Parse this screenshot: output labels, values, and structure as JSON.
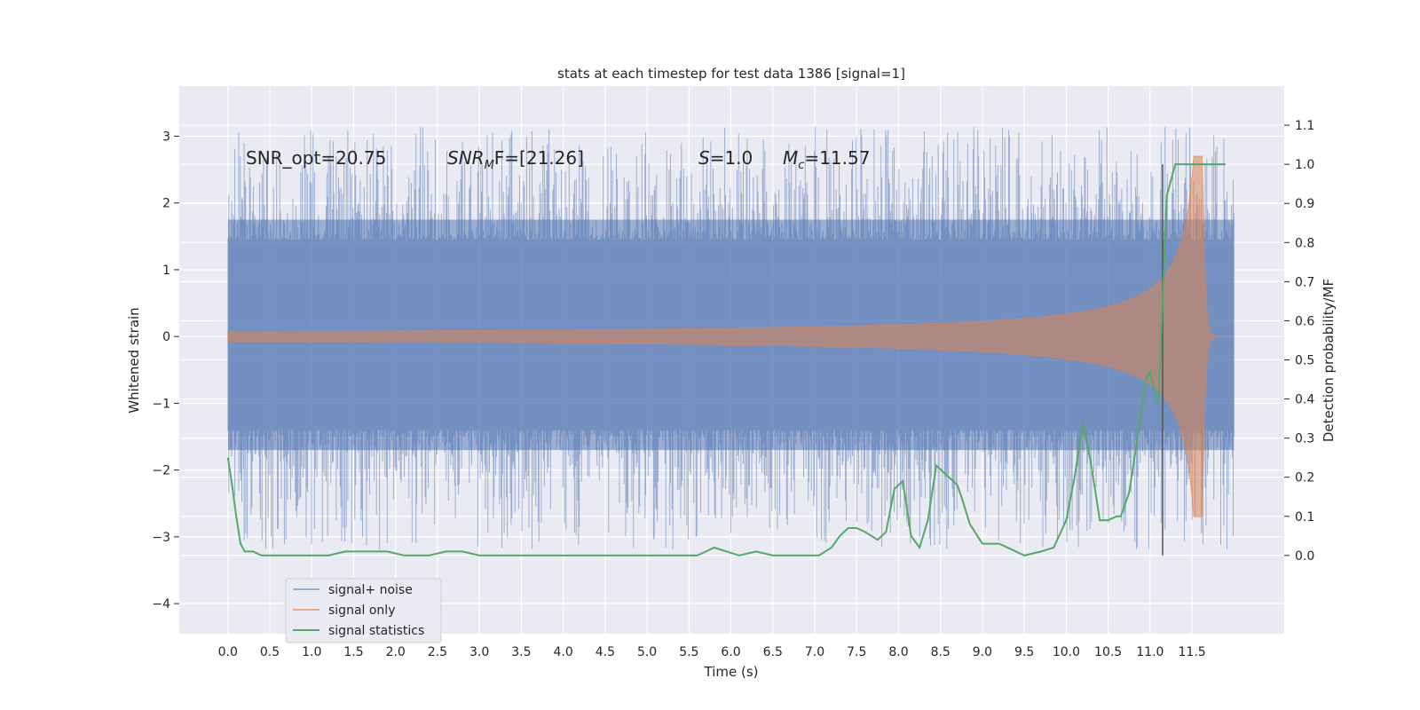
{
  "chart_data": {
    "type": "line",
    "title": "stats at each timestep for test data 1386 [signal=1]",
    "xlabel": "Time (s)",
    "ylabel": "Whitened strain",
    "ylabel_right": "Detection probability/MF",
    "xlim": [
      -0.58,
      12.6
    ],
    "ylim": [
      -4.45,
      3.75
    ],
    "ylim_right": [
      -0.2,
      1.2
    ],
    "x_ticks": [
      "0.0",
      "0.5",
      "1.0",
      "1.5",
      "2.0",
      "2.5",
      "3.0",
      "3.5",
      "4.0",
      "4.5",
      "5.0",
      "5.5",
      "6.0",
      "6.5",
      "7.0",
      "7.5",
      "8.0",
      "8.5",
      "9.0",
      "9.5",
      "10.0",
      "10.5",
      "11.0",
      "11.5"
    ],
    "y_ticks_left": [
      "3",
      "2",
      "1",
      "0",
      "−1",
      "−2",
      "−3",
      "−4"
    ],
    "y_ticks_right": [
      "1.1",
      "1.0",
      "0.9",
      "0.8",
      "0.7",
      "0.6",
      "0.5",
      "0.4",
      "0.3",
      "0.2",
      "0.1",
      "0.0"
    ],
    "grid": true,
    "legend_position": "lower-left",
    "legend": [
      "signal+ noise",
      "signal only",
      "signal statistics"
    ],
    "colors": {
      "noise": "#4c72b0",
      "signal": "#dd8452",
      "stats": "#55a868",
      "vline": "#555555",
      "background": "#eaeaf2"
    },
    "annotations": {
      "snr_opt": "SNR_opt=20.75",
      "snr_mf_main": "SNR",
      "snr_mf_sub": "M",
      "snr_mf_value": "F=[21.26]",
      "s_main": "S",
      "s_value": "=1.0",
      "mc_main": "M",
      "mc_sub": "c",
      "mc_value": "=11.57"
    },
    "series": [
      {
        "name": "signal+ noise",
        "axis": "left",
        "description_values": {
          "t_start": 0.0,
          "t_end": 12.0,
          "typical_range": [
            -1.7,
            1.75
          ],
          "max": 3.35,
          "min": -3.45
        }
      },
      {
        "name": "signal only",
        "axis": "left",
        "description_values": {
          "t_start": 0.0,
          "t_end": 12.0,
          "peak_time": 11.63,
          "peak_amplitude": 2.7
        }
      },
      {
        "name": "signal statistics",
        "axis": "right",
        "x": [
          0.0,
          0.05,
          0.1,
          0.15,
          0.2,
          0.3,
          0.4,
          0.5,
          0.6,
          0.8,
          1.0,
          1.2,
          1.4,
          1.55,
          1.7,
          1.9,
          2.1,
          2.4,
          2.6,
          2.8,
          3.0,
          3.4,
          3.8,
          4.2,
          4.5,
          4.8,
          5.0,
          5.2,
          5.6,
          5.8,
          5.95,
          6.1,
          6.3,
          6.5,
          6.8,
          7.05,
          7.2,
          7.3,
          7.4,
          7.5,
          7.6,
          7.75,
          7.85,
          7.95,
          8.05,
          8.15,
          8.25,
          8.35,
          8.45,
          8.6,
          8.7,
          8.75,
          8.85,
          9.0,
          9.2,
          9.5,
          9.7,
          9.85,
          10.0,
          10.1,
          10.2,
          10.3,
          10.4,
          10.5,
          10.6,
          10.65,
          10.75,
          10.85,
          10.95,
          11.0,
          11.05,
          11.1,
          11.2,
          11.3,
          11.5,
          11.9
        ],
        "values": [
          0.25,
          0.18,
          0.1,
          0.03,
          0.01,
          0.01,
          0.0,
          0.0,
          0.0,
          0.0,
          0.0,
          0.0,
          0.01,
          0.01,
          0.01,
          0.01,
          0.0,
          0.0,
          0.01,
          0.01,
          0.0,
          0.0,
          0.0,
          0.0,
          0.0,
          0.0,
          0.0,
          0.0,
          0.0,
          0.02,
          0.01,
          0.0,
          0.01,
          0.0,
          0.0,
          0.0,
          0.02,
          0.05,
          0.07,
          0.07,
          0.06,
          0.04,
          0.06,
          0.17,
          0.19,
          0.05,
          0.02,
          0.09,
          0.23,
          0.2,
          0.18,
          0.15,
          0.08,
          0.03,
          0.03,
          0.0,
          0.01,
          0.02,
          0.09,
          0.2,
          0.34,
          0.23,
          0.09,
          0.09,
          0.1,
          0.1,
          0.16,
          0.3,
          0.45,
          0.47,
          0.42,
          0.39,
          0.92,
          1.0,
          1.0,
          1.0
        ]
      }
    ],
    "vertical_line": {
      "x": 11.15
    }
  }
}
